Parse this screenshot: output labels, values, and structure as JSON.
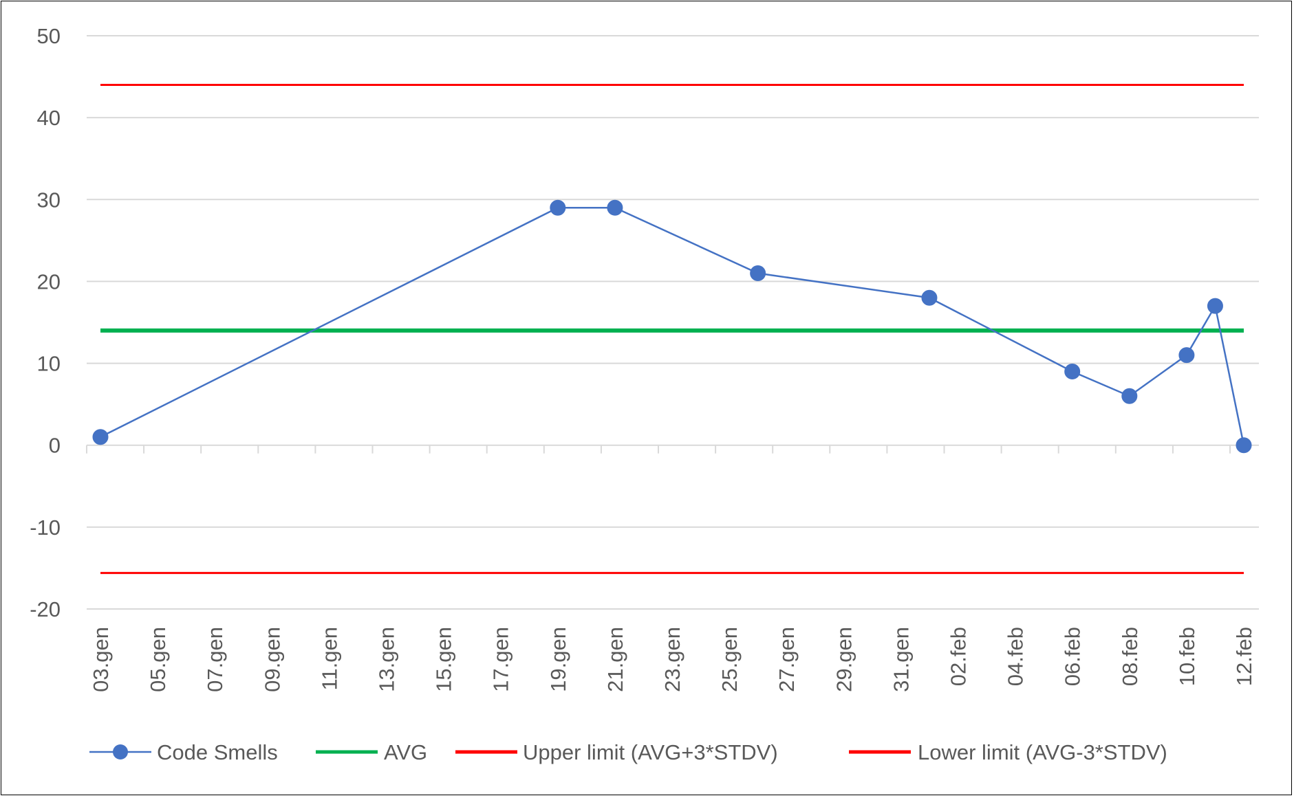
{
  "chart_data": {
    "type": "line",
    "title": "",
    "xlabel": "",
    "ylabel": "",
    "ylim": [
      -20,
      50
    ],
    "yticks": [
      -20,
      -10,
      0,
      10,
      20,
      30,
      40,
      50
    ],
    "xlim": [
      "03.gen",
      "12.feb"
    ],
    "xtick_labels": [
      "03.gen",
      "05.gen",
      "07.gen",
      "09.gen",
      "11.gen",
      "13.gen",
      "15.gen",
      "17.gen",
      "19.gen",
      "21.gen",
      "23.gen",
      "25.gen",
      "27.gen",
      "29.gen",
      "31.gen",
      "02.feb",
      "04.feb",
      "06.feb",
      "08.feb",
      "10.feb",
      "12.feb"
    ],
    "grid": true,
    "legend_position": "bottom",
    "series": [
      {
        "name": "Code Smells",
        "color": "#4472C4",
        "marker": "circle",
        "points": [
          {
            "x": "03.gen",
            "y": 1
          },
          {
            "x": "19.gen",
            "y": 29
          },
          {
            "x": "21.gen",
            "y": 29
          },
          {
            "x": "26.gen",
            "y": 21
          },
          {
            "x": "01.feb",
            "y": 18
          },
          {
            "x": "06.feb",
            "y": 9
          },
          {
            "x": "08.feb",
            "y": 6
          },
          {
            "x": "10.feb",
            "y": 11
          },
          {
            "x": "11.feb",
            "y": 17
          },
          {
            "x": "12.feb",
            "y": 0
          }
        ]
      },
      {
        "name": "AVG",
        "color": "#00B050",
        "value": 14
      },
      {
        "name": "Upper limit (AVG+3*STDV)",
        "color": "#FF0000",
        "value": 44
      },
      {
        "name": "Lower limit (AVG-3*STDV)",
        "color": "#FF0000",
        "value": -15.6
      }
    ]
  }
}
